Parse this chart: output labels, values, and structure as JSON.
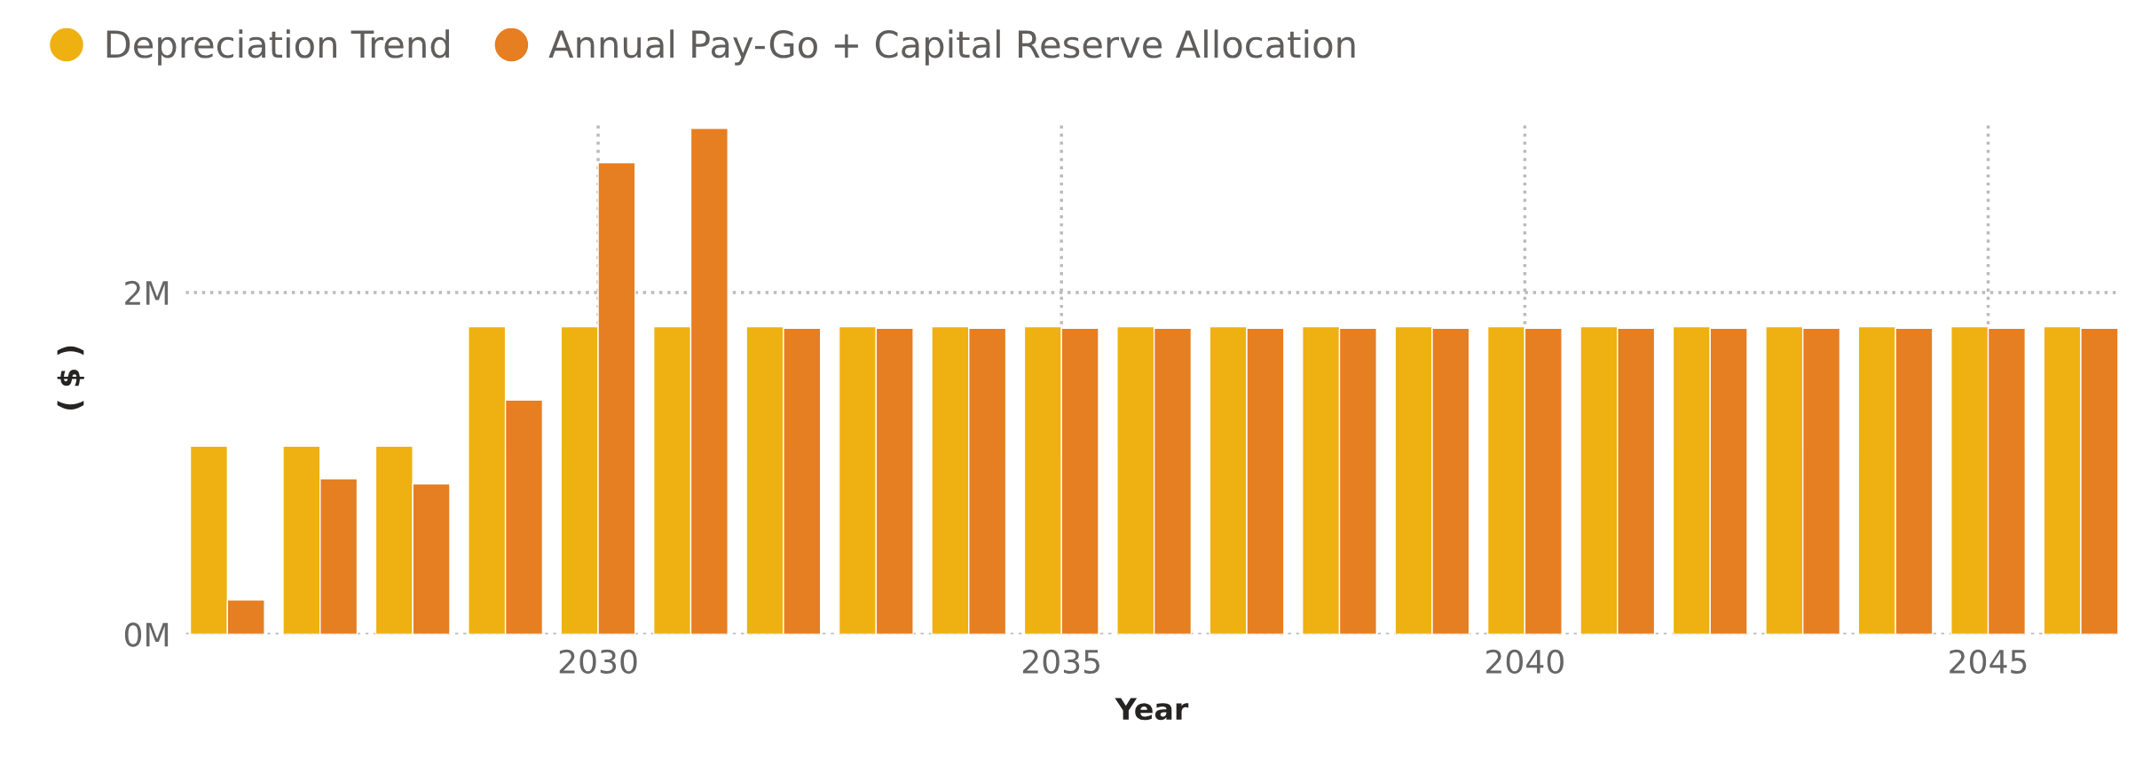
{
  "chart_data": {
    "type": "bar",
    "xlabel": "Year",
    "ylabel": "( $ )",
    "x": [
      2026,
      2027,
      2028,
      2029,
      2030,
      2031,
      2032,
      2033,
      2034,
      2035,
      2036,
      2037,
      2038,
      2039,
      2040,
      2041,
      2042,
      2043,
      2044,
      2045,
      2046
    ],
    "series": [
      {
        "name": "Depreciation Trend",
        "color": "#eeb111",
        "values": [
          1.1,
          1.1,
          1.1,
          1.8,
          1.8,
          1.8,
          1.8,
          1.8,
          1.8,
          1.8,
          1.8,
          1.8,
          1.8,
          1.8,
          1.8,
          1.8,
          1.8,
          1.8,
          1.8,
          1.8,
          1.8
        ]
      },
      {
        "name": "Annual Pay-Go + Capital Reserve Allocation",
        "color": "#e67e22",
        "values": [
          0.2,
          0.91,
          0.88,
          1.37,
          2.76,
          2.96,
          1.79,
          1.79,
          1.79,
          1.79,
          1.79,
          1.79,
          1.79,
          1.79,
          1.79,
          1.79,
          1.79,
          1.79,
          1.79,
          1.79,
          1.79
        ]
      }
    ],
    "xlim": [
      2025.55,
      2046.4
    ],
    "xticks": [
      2030,
      2035,
      2040,
      2045
    ],
    "ylim": [
      0,
      3.0
    ],
    "yticks": [
      {
        "value": 0,
        "label": "0M"
      },
      {
        "value": 2,
        "label": "2M"
      }
    ],
    "grid": true,
    "line_style": "dotted",
    "legend": "top left"
  }
}
